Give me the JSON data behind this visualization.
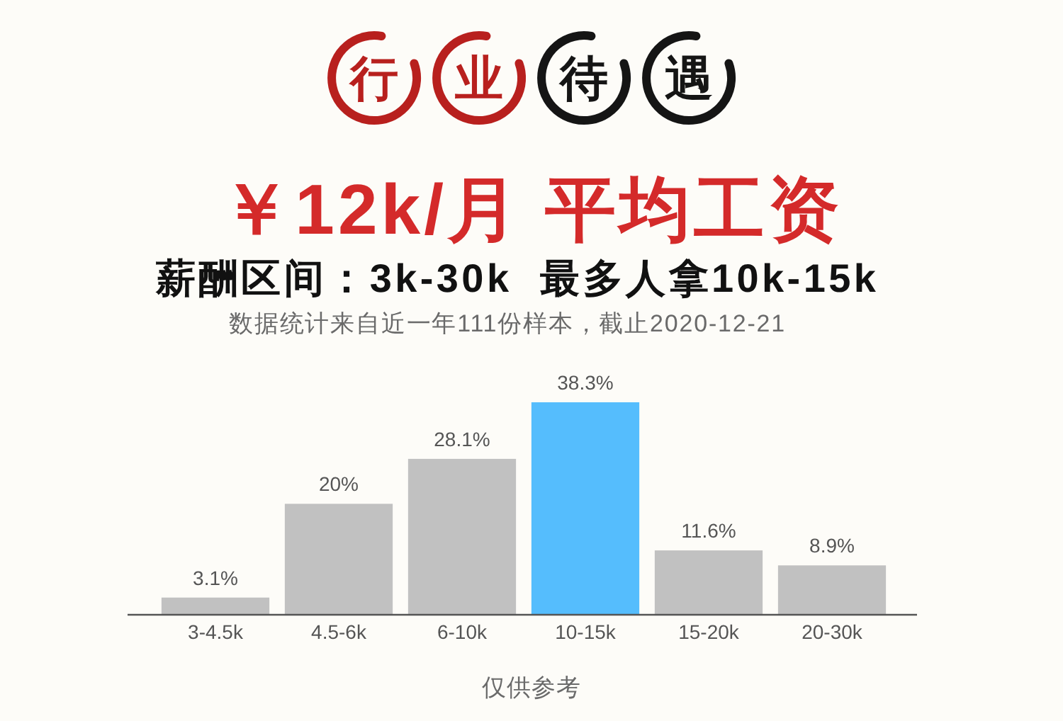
{
  "chart_data": {
    "type": "bar",
    "title": "行业待遇",
    "subtitle": "￥12k/月 平均工资",
    "annotations": [
      "薪酬区间：3k-30k  最多人拿10k-15k",
      "数据统计来自近一年111份样本，截止2020-12-21",
      "仅供参考"
    ],
    "categories": [
      "3-4.5k",
      "4.5-6k",
      "6-10k",
      "10-15k",
      "15-20k",
      "20-30k"
    ],
    "values": [
      3.1,
      20,
      28.1,
      38.3,
      11.6,
      8.9
    ],
    "colors": [
      "#c1c1c1",
      "#c1c1c1",
      "#c1c1c1",
      "#55bdfd",
      "#c1c1c1",
      "#c1c1c1"
    ],
    "value_labels": [
      "3.1%",
      "20%",
      "28.1%",
      "38.3%",
      "11.6%",
      "8.9%"
    ]
  }
}
